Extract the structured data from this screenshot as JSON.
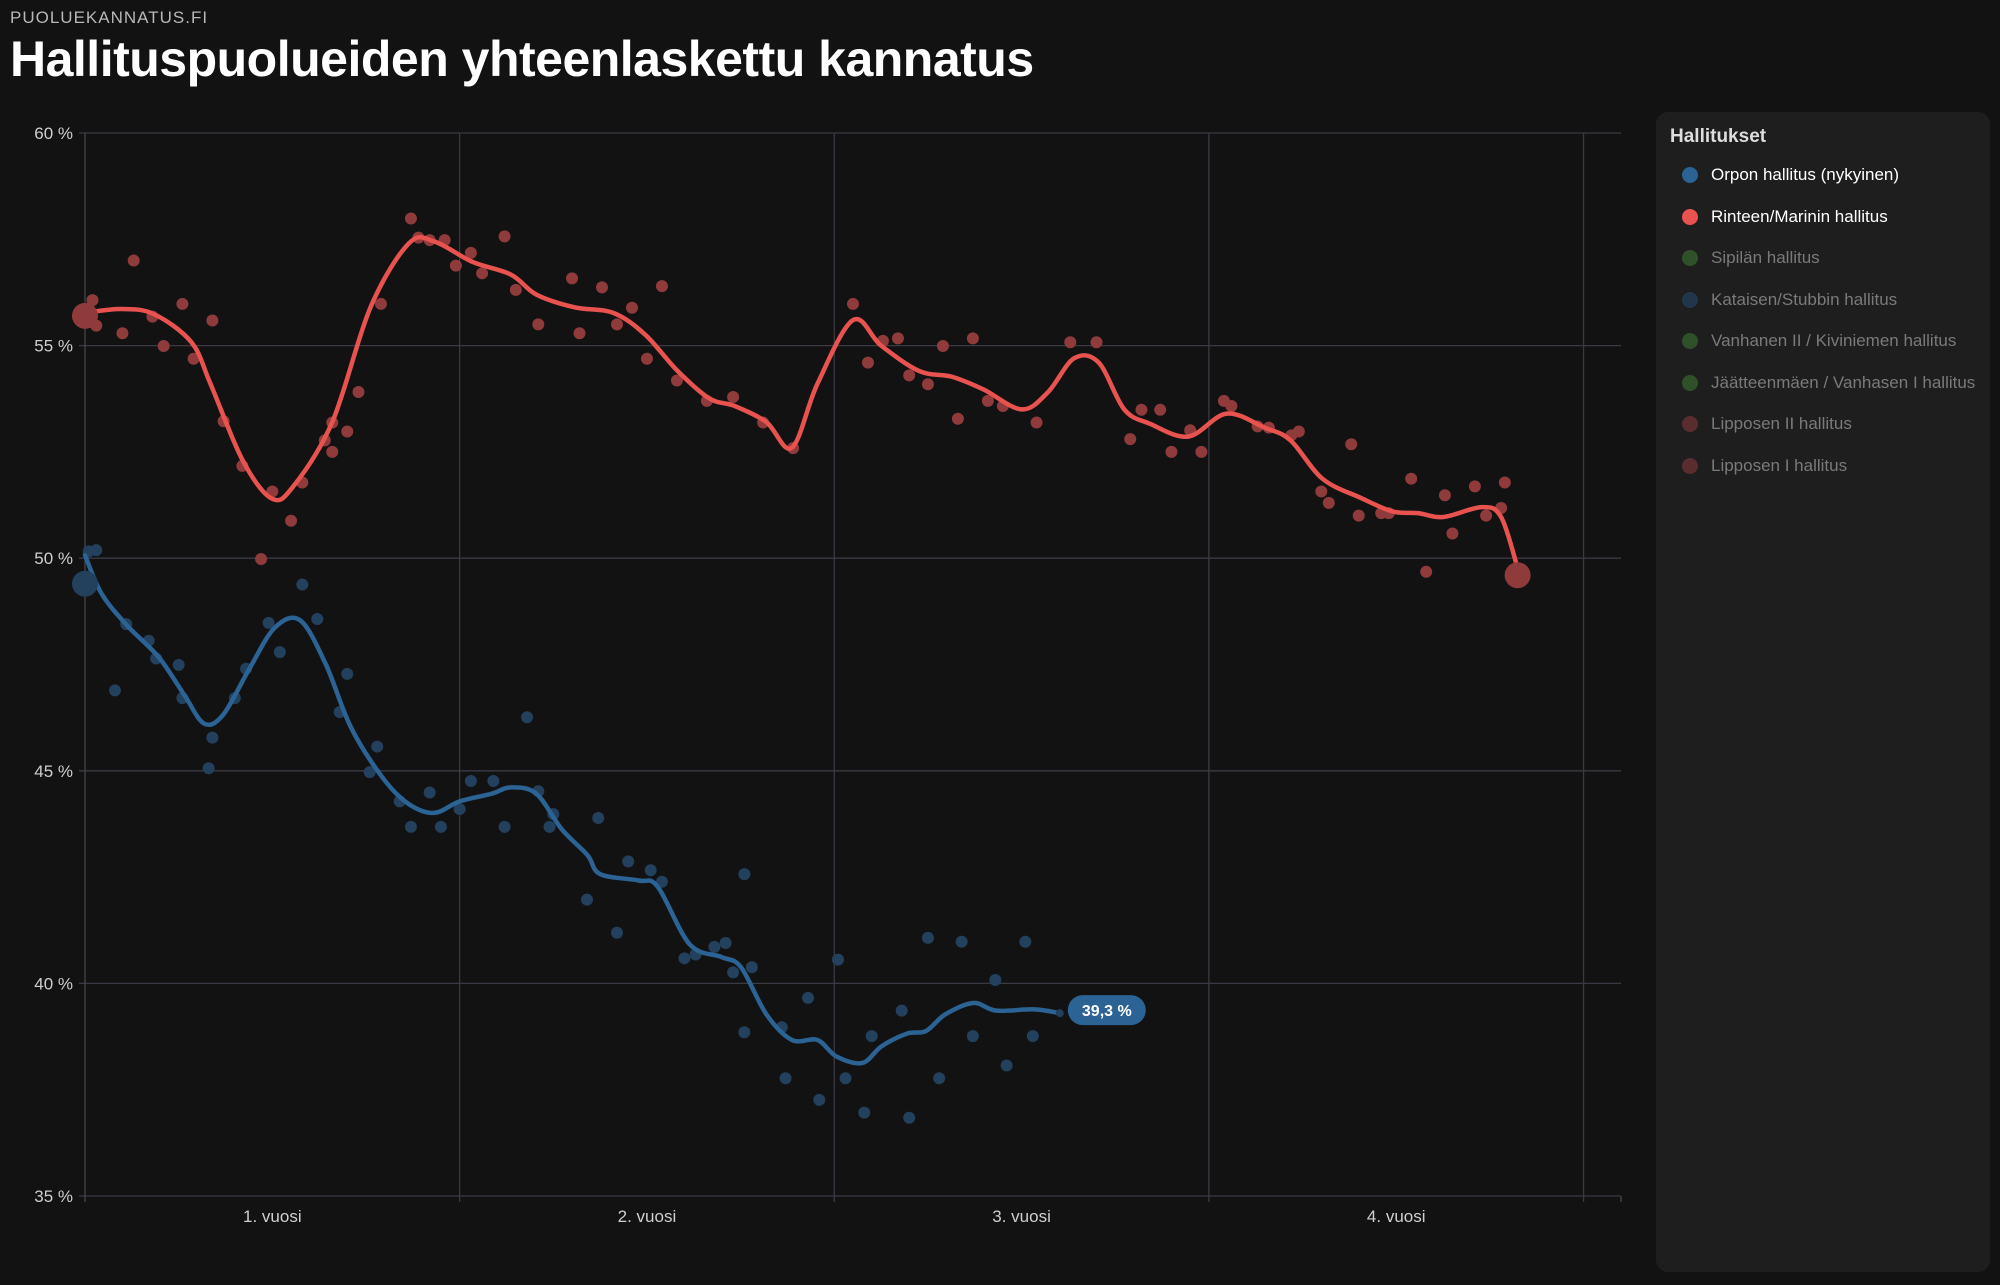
{
  "site_name": "PUOLUEKANNATUS.FI",
  "title": "Hallituspuolueiden yhteenlaskettu kannatus",
  "legend": {
    "title": "Hallitukset",
    "items": [
      {
        "label": "Orpon hallitus (nykyinen)",
        "color": "#2a6394",
        "active": true
      },
      {
        "label": "Rinteen/Marinin hallitus",
        "color": "#e8534f",
        "active": true
      },
      {
        "label": "Sipilän hallitus",
        "color": "#3f7a34",
        "active": false
      },
      {
        "label": "Kataisen/Stubbin hallitus",
        "color": "#244a6e",
        "active": false
      },
      {
        "label": "Vanhanen II / Kiviniemen hallitus",
        "color": "#3f7a34",
        "active": false
      },
      {
        "label": "Jäätteenmäen / Vanhasen I hallitus",
        "color": "#3f7a34",
        "active": false
      },
      {
        "label": "Lipposen II hallitus",
        "color": "#8a3a3a",
        "active": false
      },
      {
        "label": "Lipposen I hallitus",
        "color": "#8a3a3a",
        "active": false
      }
    ]
  },
  "chart_data": {
    "type": "line",
    "title": "Hallituspuolueiden yhteenlaskettu kannatus",
    "xlabel": "",
    "ylabel": "",
    "xlim": [
      0,
      4.1
    ],
    "ylim": [
      35,
      60
    ],
    "yticks": [
      60,
      55,
      50,
      45,
      40,
      35
    ],
    "ytick_labels": [
      "60 %",
      "55 %",
      "50 %",
      "45 %",
      "40 %",
      "35 %"
    ],
    "xticks": [
      0.5,
      1.5,
      2.5,
      3.5
    ],
    "xtick_labels": [
      "1. vuosi",
      "2. vuosi",
      "3. vuosi",
      "4. vuosi"
    ],
    "xgrid": [
      1,
      2,
      3,
      4
    ],
    "grid": true,
    "series": [
      {
        "name": "Rinteen/Marinin hallitus",
        "line_color": "#e8534f",
        "dot_color": "#8f3b3b",
        "start": [
          0,
          55.7
        ],
        "end": [
          3.824,
          49.6
        ],
        "trend": [
          [
            0,
            55.77
          ],
          [
            0.097,
            55.86
          ],
          [
            0.184,
            55.74
          ],
          [
            0.284,
            55.08
          ],
          [
            0.335,
            54.1
          ],
          [
            0.421,
            52.3
          ],
          [
            0.499,
            51.4
          ],
          [
            0.557,
            51.7
          ],
          [
            0.66,
            53.2
          ],
          [
            0.762,
            55.9
          ],
          [
            0.864,
            57.4
          ],
          [
            0.932,
            57.45
          ],
          [
            1.034,
            56.97
          ],
          [
            1.137,
            56.67
          ],
          [
            1.205,
            56.2
          ],
          [
            1.307,
            55.9
          ],
          [
            1.41,
            55.77
          ],
          [
            1.495,
            55.26
          ],
          [
            1.58,
            54.42
          ],
          [
            1.666,
            53.76
          ],
          [
            1.734,
            53.58
          ],
          [
            1.819,
            53.2
          ],
          [
            1.887,
            52.6
          ],
          [
            1.955,
            54.1
          ],
          [
            2.05,
            55.6
          ],
          [
            2.125,
            55.0
          ],
          [
            2.227,
            54.4
          ],
          [
            2.313,
            54.27
          ],
          [
            2.398,
            53.97
          ],
          [
            2.5,
            53.5
          ],
          [
            2.57,
            53.9
          ],
          [
            2.64,
            54.7
          ],
          [
            2.706,
            54.6
          ],
          [
            2.774,
            53.5
          ],
          [
            2.843,
            53.16
          ],
          [
            2.945,
            52.86
          ],
          [
            3.047,
            53.4
          ],
          [
            3.149,
            53.07
          ],
          [
            3.218,
            52.77
          ],
          [
            3.303,
            51.87
          ],
          [
            3.405,
            51.42
          ],
          [
            3.49,
            51.1
          ],
          [
            3.558,
            51.06
          ],
          [
            3.626,
            50.97
          ],
          [
            3.729,
            51.2
          ],
          [
            3.78,
            50.97
          ],
          [
            3.824,
            49.77
          ]
        ],
        "polls": [
          [
            0.02,
            56.07
          ],
          [
            0.03,
            55.47
          ],
          [
            0.1,
            55.29
          ],
          [
            0.13,
            57.0
          ],
          [
            0.18,
            55.68
          ],
          [
            0.21,
            54.99
          ],
          [
            0.26,
            55.98
          ],
          [
            0.29,
            54.69
          ],
          [
            0.34,
            55.59
          ],
          [
            0.37,
            53.22
          ],
          [
            0.42,
            52.17
          ],
          [
            0.47,
            49.98
          ],
          [
            0.5,
            51.57
          ],
          [
            0.55,
            50.88
          ],
          [
            0.58,
            51.78
          ],
          [
            0.64,
            52.77
          ],
          [
            0.66,
            52.5
          ],
          [
            0.66,
            53.19
          ],
          [
            0.7,
            52.98
          ],
          [
            0.73,
            53.91
          ],
          [
            0.79,
            55.98
          ],
          [
            0.87,
            57.99
          ],
          [
            0.89,
            57.54
          ],
          [
            0.92,
            57.48
          ],
          [
            0.96,
            57.48
          ],
          [
            0.99,
            56.88
          ],
          [
            1.03,
            57.18
          ],
          [
            1.06,
            56.7
          ],
          [
            1.12,
            57.57
          ],
          [
            1.15,
            56.31
          ],
          [
            1.21,
            55.5
          ],
          [
            1.3,
            56.58
          ],
          [
            1.32,
            55.29
          ],
          [
            1.38,
            56.37
          ],
          [
            1.42,
            55.5
          ],
          [
            1.46,
            55.89
          ],
          [
            1.5,
            54.69
          ],
          [
            1.54,
            56.4
          ],
          [
            1.58,
            54.18
          ],
          [
            1.66,
            53.7
          ],
          [
            1.73,
            53.79
          ],
          [
            1.81,
            53.19
          ],
          [
            1.89,
            52.59
          ],
          [
            2.05,
            55.98
          ],
          [
            2.09,
            54.6
          ],
          [
            2.13,
            55.11
          ],
          [
            2.17,
            55.17
          ],
          [
            2.2,
            54.3
          ],
          [
            2.25,
            54.09
          ],
          [
            2.29,
            54.99
          ],
          [
            2.33,
            53.28
          ],
          [
            2.37,
            55.17
          ],
          [
            2.41,
            53.7
          ],
          [
            2.45,
            53.58
          ],
          [
            2.54,
            53.19
          ],
          [
            2.63,
            55.08
          ],
          [
            2.7,
            55.08
          ],
          [
            2.79,
            52.8
          ],
          [
            2.82,
            53.49
          ],
          [
            2.87,
            53.49
          ],
          [
            2.9,
            52.5
          ],
          [
            2.95,
            53.01
          ],
          [
            2.98,
            52.5
          ],
          [
            3.04,
            53.7
          ],
          [
            3.06,
            53.58
          ],
          [
            3.13,
            53.1
          ],
          [
            3.16,
            53.07
          ],
          [
            3.22,
            52.89
          ],
          [
            3.24,
            52.98
          ],
          [
            3.3,
            51.57
          ],
          [
            3.32,
            51.3
          ],
          [
            3.38,
            52.68
          ],
          [
            3.4,
            51.0
          ],
          [
            3.46,
            51.06
          ],
          [
            3.48,
            51.06
          ],
          [
            3.54,
            51.87
          ],
          [
            3.58,
            49.68
          ],
          [
            3.63,
            51.48
          ],
          [
            3.65,
            50.58
          ],
          [
            3.71,
            51.69
          ],
          [
            3.74,
            51.0
          ],
          [
            3.78,
            51.18
          ],
          [
            3.79,
            51.78
          ]
        ]
      },
      {
        "name": "Orpon hallitus (nykyinen)",
        "line_color": "#2a6394",
        "dot_color": "#23405c",
        "start": [
          0,
          49.4
        ],
        "end_label": "39,3 %",
        "trend": [
          [
            0,
            50.07
          ],
          [
            0.044,
            49.17
          ],
          [
            0.112,
            48.42
          ],
          [
            0.197,
            47.67
          ],
          [
            0.266,
            46.77
          ],
          [
            0.318,
            46.11
          ],
          [
            0.369,
            46.32
          ],
          [
            0.437,
            47.37
          ],
          [
            0.506,
            48.36
          ],
          [
            0.574,
            48.54
          ],
          [
            0.642,
            47.52
          ],
          [
            0.71,
            46.02
          ],
          [
            0.796,
            44.82
          ],
          [
            0.864,
            44.22
          ],
          [
            0.932,
            44.01
          ],
          [
            1.0,
            44.28
          ],
          [
            1.085,
            44.46
          ],
          [
            1.137,
            44.61
          ],
          [
            1.205,
            44.46
          ],
          [
            1.273,
            43.62
          ],
          [
            1.341,
            43.02
          ],
          [
            1.375,
            42.57
          ],
          [
            1.478,
            42.42
          ],
          [
            1.529,
            42.27
          ],
          [
            1.614,
            40.92
          ],
          [
            1.699,
            40.62
          ],
          [
            1.751,
            40.38
          ],
          [
            1.819,
            39.27
          ],
          [
            1.887,
            38.67
          ],
          [
            1.955,
            38.67
          ],
          [
            2.006,
            38.28
          ],
          [
            2.075,
            38.13
          ],
          [
            2.126,
            38.52
          ],
          [
            2.194,
            38.82
          ],
          [
            2.245,
            38.88
          ],
          [
            2.296,
            39.27
          ],
          [
            2.371,
            39.54
          ],
          [
            2.432,
            39.36
          ],
          [
            2.534,
            39.39
          ],
          [
            2.602,
            39.3
          ]
        ],
        "polls": [
          [
            0.01,
            50.16
          ],
          [
            0.03,
            50.19
          ],
          [
            0.08,
            46.89
          ],
          [
            0.11,
            48.45
          ],
          [
            0.17,
            48.06
          ],
          [
            0.19,
            47.64
          ],
          [
            0.25,
            47.49
          ],
          [
            0.26,
            46.71
          ],
          [
            0.33,
            45.06
          ],
          [
            0.34,
            45.78
          ],
          [
            0.4,
            46.71
          ],
          [
            0.43,
            47.4
          ],
          [
            0.49,
            48.48
          ],
          [
            0.52,
            47.79
          ],
          [
            0.58,
            49.38
          ],
          [
            0.62,
            48.57
          ],
          [
            0.68,
            46.38
          ],
          [
            0.7,
            47.28
          ],
          [
            0.76,
            44.97
          ],
          [
            0.78,
            45.57
          ],
          [
            0.84,
            44.28
          ],
          [
            0.87,
            43.68
          ],
          [
            0.92,
            44.49
          ],
          [
            0.95,
            43.68
          ],
          [
            1.0,
            44.1
          ],
          [
            1.03,
            44.76
          ],
          [
            1.09,
            44.76
          ],
          [
            1.12,
            43.68
          ],
          [
            1.18,
            46.26
          ],
          [
            1.21,
            44.52
          ],
          [
            1.24,
            43.68
          ],
          [
            1.25,
            43.98
          ],
          [
            1.37,
            43.89
          ],
          [
            1.34,
            41.97
          ],
          [
            1.42,
            41.19
          ],
          [
            1.45,
            42.87
          ],
          [
            1.51,
            42.66
          ],
          [
            1.54,
            42.39
          ],
          [
            1.6,
            40.59
          ],
          [
            1.63,
            40.68
          ],
          [
            1.68,
            40.86
          ],
          [
            1.71,
            40.95
          ],
          [
            1.73,
            40.26
          ],
          [
            1.76,
            38.85
          ],
          [
            1.76,
            42.57
          ],
          [
            1.78,
            40.38
          ],
          [
            1.86,
            38.97
          ],
          [
            1.87,
            37.77
          ],
          [
            1.93,
            39.66
          ],
          [
            1.96,
            37.26
          ],
          [
            2.01,
            40.56
          ],
          [
            2.03,
            37.77
          ],
          [
            2.08,
            36.96
          ],
          [
            2.1,
            38.76
          ],
          [
            2.18,
            39.36
          ],
          [
            2.2,
            36.84
          ],
          [
            2.25,
            41.07
          ],
          [
            2.28,
            37.77
          ],
          [
            2.34,
            40.98
          ],
          [
            2.37,
            38.76
          ],
          [
            2.43,
            40.08
          ],
          [
            2.46,
            38.07
          ],
          [
            2.51,
            40.98
          ],
          [
            2.53,
            38.76
          ]
        ]
      }
    ]
  }
}
